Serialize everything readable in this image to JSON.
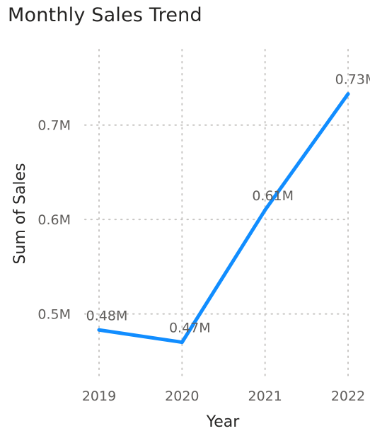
{
  "chart_data": {
    "type": "line",
    "title": "Monthly Sales Trend",
    "xlabel": "Year",
    "ylabel": "Sum of Sales",
    "categories": [
      "2019",
      "2020",
      "2021",
      "2022"
    ],
    "series": [
      {
        "values": [
          0.483,
          0.47,
          0.61,
          0.733
        ],
        "data_labels": [
          "0.48M",
          "0.47M",
          "0.61M",
          "0.73M"
        ],
        "color": "#118DFF"
      }
    ],
    "y_ticks": [
      {
        "value": 0.5,
        "label": "0.5M"
      },
      {
        "value": 0.6,
        "label": "0.6M"
      },
      {
        "value": 0.7,
        "label": "0.7M"
      }
    ],
    "ylim": [
      0.43,
      0.78
    ],
    "grid": true,
    "legend": "none"
  }
}
